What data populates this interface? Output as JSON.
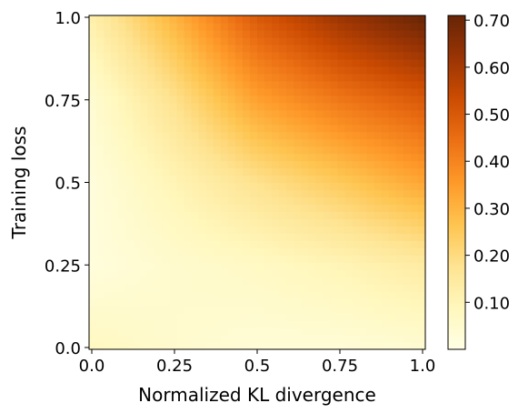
{
  "chart_data": {
    "type": "heatmap",
    "title": "",
    "xlabel": "Normalized KL divergence",
    "ylabel": "Training loss",
    "xlim": [
      0,
      1
    ],
    "ylim": [
      0,
      1
    ],
    "x_ticks": [
      0,
      0.25,
      0.5,
      0.75,
      1
    ],
    "x_tick_labels": [
      "0.0",
      "0.25",
      "0.5",
      "0.75",
      "1.0"
    ],
    "y_ticks": [
      0,
      0.25,
      0.5,
      0.75,
      1
    ],
    "y_tick_labels": [
      "0.0",
      "0.25",
      "0.5",
      "0.75",
      "1.0"
    ],
    "grid": false,
    "colormap": "YlOrBr",
    "colorbar": {
      "range": [
        0.0,
        0.71
      ],
      "ticks": [
        0.1,
        0.2,
        0.3,
        0.4,
        0.5,
        0.6,
        0.7
      ],
      "tick_labels": [
        "0.10",
        "0.20",
        "0.30",
        "0.40",
        "0.50",
        "0.60",
        "0.70"
      ],
      "colors": [
        "#ffffe5",
        "#fff7bc",
        "#fee391",
        "#fec44f",
        "#fe9929",
        "#ec7014",
        "#cc4c02",
        "#993404",
        "#662506"
      ]
    },
    "z_samples": {
      "x": [
        0,
        0.25,
        0.5,
        0.75,
        1
      ],
      "y": [
        0,
        0.25,
        0.5,
        0.75,
        1
      ],
      "z": [
        [
          0.08,
          0.05,
          0.03,
          0.03,
          0.04
        ],
        [
          0.02,
          0.05,
          0.07,
          0.1,
          0.14
        ],
        [
          0.02,
          0.1,
          0.18,
          0.25,
          0.33
        ],
        [
          0.04,
          0.18,
          0.34,
          0.43,
          0.5
        ],
        [
          0.12,
          0.3,
          0.5,
          0.62,
          0.71
        ]
      ]
    }
  }
}
